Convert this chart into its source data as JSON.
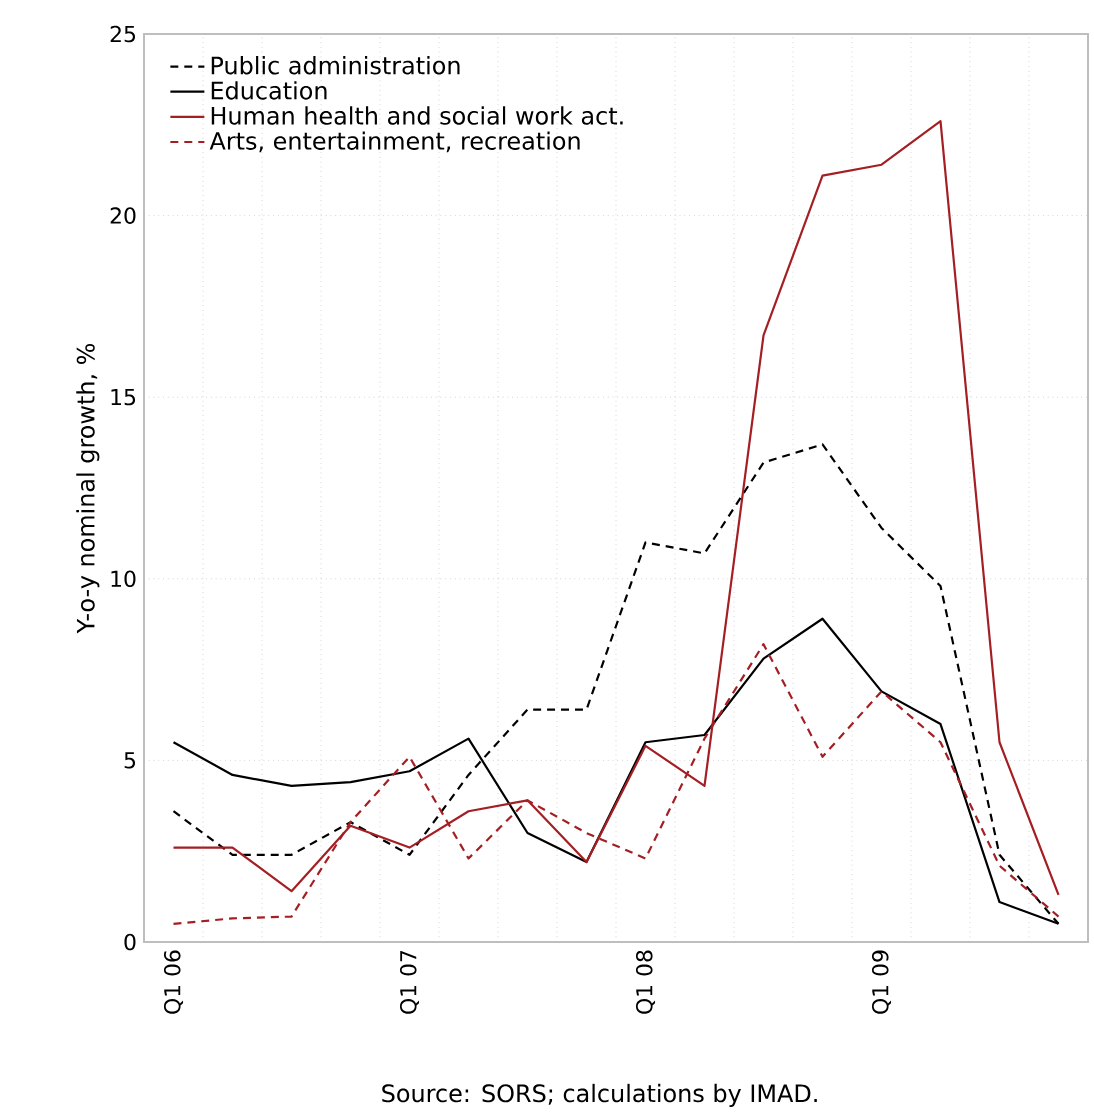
{
  "chart_data": {
    "type": "line",
    "ylabel": "Y-o-y nominal growth, %",
    "categories": [
      "Q1 06",
      null,
      null,
      null,
      "Q1 07",
      null,
      null,
      null,
      "Q1 08",
      null,
      null,
      null,
      "Q1 09",
      null,
      null,
      null
    ],
    "series": [
      {
        "name": "Public administration",
        "color": "#000000",
        "line_style": "dashed",
        "values": [
          3.6,
          2.4,
          2.4,
          3.3,
          2.4,
          4.6,
          6.4,
          6.4,
          11.0,
          10.7,
          13.2,
          13.7,
          11.4,
          9.8,
          2.4,
          0.5
        ]
      },
      {
        "name": "Education",
        "color": "#000000",
        "line_style": "solid",
        "values": [
          5.5,
          4.6,
          4.3,
          4.4,
          4.7,
          5.6,
          3.0,
          2.2,
          5.5,
          5.7,
          7.8,
          8.9,
          6.9,
          6.0,
          1.1,
          0.5
        ]
      },
      {
        "name": "Human health and social work act.",
        "color": "#a31f24",
        "line_style": "solid",
        "values": [
          2.6,
          2.6,
          1.4,
          3.2,
          2.6,
          3.6,
          3.9,
          2.2,
          5.4,
          4.3,
          16.7,
          21.1,
          21.4,
          22.6,
          5.5,
          1.3
        ]
      },
      {
        "name": "Arts, entertainment, recreation",
        "color": "#a31f24",
        "line_style": "dashed",
        "values": [
          0.5,
          0.65,
          0.7,
          3.3,
          5.1,
          2.3,
          3.9,
          3.0,
          2.3,
          5.6,
          8.2,
          5.1,
          6.9,
          5.5,
          2.1,
          0.7
        ]
      }
    ],
    "ylim": [
      0,
      25
    ],
    "yticks": [
      0,
      5,
      10,
      15,
      20,
      25
    ],
    "grid": true,
    "legend": "top left",
    "marker": "none",
    "annotations": [
      "Source: SORS; calculations by IMAD."
    ]
  }
}
